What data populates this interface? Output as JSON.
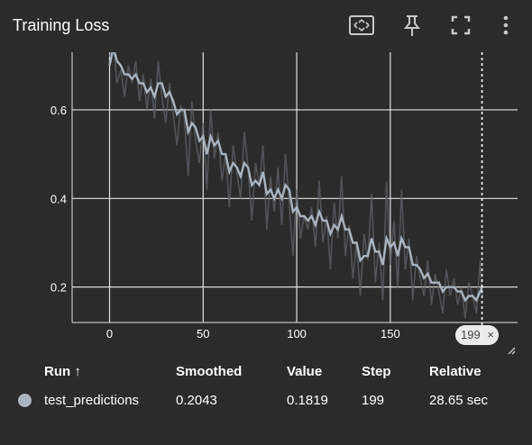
{
  "title": "Training Loss",
  "toolbar": {
    "icons": [
      "fit-domain-icon",
      "pin-icon",
      "fullscreen-icon",
      "more-vert-icon"
    ]
  },
  "badge": {
    "step": "199",
    "close": "×"
  },
  "table": {
    "headers": {
      "run": "Run ↑",
      "smoothed": "Smoothed",
      "value": "Value",
      "step": "Step",
      "relative": "Relative"
    },
    "row": {
      "run": "test_predictions",
      "smoothed": "0.2043",
      "value": "0.1819",
      "step": "199",
      "relative": "28.65 sec",
      "color": "#a9b4c0"
    }
  },
  "colors": {
    "background": "#2b2b2b",
    "grid": "#e0e0e0",
    "raw": "#5f6368",
    "smoothed": "#a9b4c0"
  },
  "chart_data": {
    "type": "line",
    "title": "Training Loss",
    "xlabel": "",
    "ylabel": "",
    "xlim": [
      -20,
      218
    ],
    "ylim": [
      0.12,
      0.73
    ],
    "xticks": [
      0,
      50,
      100,
      150
    ],
    "yticks": [
      0.2,
      0.4,
      0.6
    ],
    "grid": true,
    "cursor_step": 199,
    "series": [
      {
        "role": "raw",
        "x": [
          0,
          2,
          4,
          6,
          8,
          10,
          12,
          14,
          16,
          18,
          20,
          22,
          24,
          26,
          28,
          30,
          32,
          34,
          36,
          38,
          40,
          42,
          44,
          46,
          48,
          50,
          52,
          54,
          56,
          58,
          60,
          62,
          64,
          66,
          68,
          70,
          72,
          74,
          76,
          78,
          80,
          82,
          84,
          86,
          88,
          90,
          92,
          94,
          96,
          98,
          100,
          102,
          104,
          106,
          108,
          110,
          112,
          114,
          116,
          118,
          120,
          122,
          124,
          126,
          128,
          130,
          132,
          134,
          136,
          138,
          140,
          142,
          144,
          146,
          148,
          150,
          152,
          154,
          156,
          158,
          160,
          162,
          164,
          166,
          168,
          170,
          172,
          174,
          176,
          178,
          180,
          182,
          184,
          186,
          188,
          190,
          192,
          194,
          196,
          198,
          199
        ],
        "values": [
          0.72,
          0.75,
          0.66,
          0.69,
          0.63,
          0.7,
          0.66,
          0.71,
          0.62,
          0.68,
          0.6,
          0.67,
          0.58,
          0.71,
          0.63,
          0.57,
          0.66,
          0.59,
          0.52,
          0.61,
          0.58,
          0.45,
          0.62,
          0.53,
          0.48,
          0.57,
          0.42,
          0.6,
          0.49,
          0.55,
          0.44,
          0.5,
          0.38,
          0.52,
          0.46,
          0.4,
          0.55,
          0.47,
          0.35,
          0.48,
          0.43,
          0.52,
          0.33,
          0.45,
          0.37,
          0.47,
          0.34,
          0.5,
          0.39,
          0.27,
          0.42,
          0.31,
          0.36,
          0.33,
          0.38,
          0.29,
          0.44,
          0.3,
          0.36,
          0.24,
          0.39,
          0.31,
          0.45,
          0.27,
          0.34,
          0.22,
          0.3,
          0.18,
          0.32,
          0.26,
          0.41,
          0.21,
          0.3,
          0.17,
          0.44,
          0.25,
          0.35,
          0.2,
          0.42,
          0.24,
          0.31,
          0.17,
          0.27,
          0.22,
          0.18,
          0.26,
          0.16,
          0.23,
          0.19,
          0.14,
          0.24,
          0.18,
          0.22,
          0.16,
          0.2,
          0.13,
          0.21,
          0.18,
          0.14,
          0.26,
          0.18
        ]
      },
      {
        "role": "smoothed",
        "x": [
          0,
          2,
          4,
          6,
          8,
          10,
          12,
          14,
          16,
          18,
          20,
          22,
          24,
          26,
          28,
          30,
          32,
          34,
          36,
          38,
          40,
          42,
          44,
          46,
          48,
          50,
          52,
          54,
          56,
          58,
          60,
          62,
          64,
          66,
          68,
          70,
          72,
          74,
          76,
          78,
          80,
          82,
          84,
          86,
          88,
          90,
          92,
          94,
          96,
          98,
          100,
          102,
          104,
          106,
          108,
          110,
          112,
          114,
          116,
          118,
          120,
          122,
          124,
          126,
          128,
          130,
          132,
          134,
          136,
          138,
          140,
          142,
          144,
          146,
          148,
          150,
          152,
          154,
          156,
          158,
          160,
          162,
          164,
          166,
          168,
          170,
          172,
          174,
          176,
          178,
          180,
          182,
          184,
          186,
          188,
          190,
          192,
          194,
          196,
          198,
          199
        ],
        "values": [
          0.7,
          0.74,
          0.71,
          0.7,
          0.68,
          0.68,
          0.67,
          0.68,
          0.66,
          0.66,
          0.64,
          0.65,
          0.63,
          0.66,
          0.66,
          0.63,
          0.64,
          0.62,
          0.59,
          0.6,
          0.6,
          0.55,
          0.57,
          0.56,
          0.53,
          0.54,
          0.5,
          0.54,
          0.52,
          0.53,
          0.5,
          0.5,
          0.46,
          0.48,
          0.47,
          0.45,
          0.48,
          0.47,
          0.43,
          0.44,
          0.43,
          0.46,
          0.41,
          0.42,
          0.4,
          0.42,
          0.4,
          0.43,
          0.42,
          0.37,
          0.38,
          0.36,
          0.36,
          0.35,
          0.36,
          0.34,
          0.37,
          0.35,
          0.35,
          0.32,
          0.34,
          0.33,
          0.36,
          0.33,
          0.33,
          0.3,
          0.3,
          0.26,
          0.27,
          0.27,
          0.31,
          0.28,
          0.28,
          0.25,
          0.31,
          0.29,
          0.3,
          0.27,
          0.31,
          0.29,
          0.29,
          0.25,
          0.25,
          0.24,
          0.22,
          0.23,
          0.21,
          0.21,
          0.21,
          0.19,
          0.2,
          0.2,
          0.2,
          0.19,
          0.19,
          0.17,
          0.18,
          0.18,
          0.17,
          0.19,
          0.2
        ]
      }
    ]
  }
}
